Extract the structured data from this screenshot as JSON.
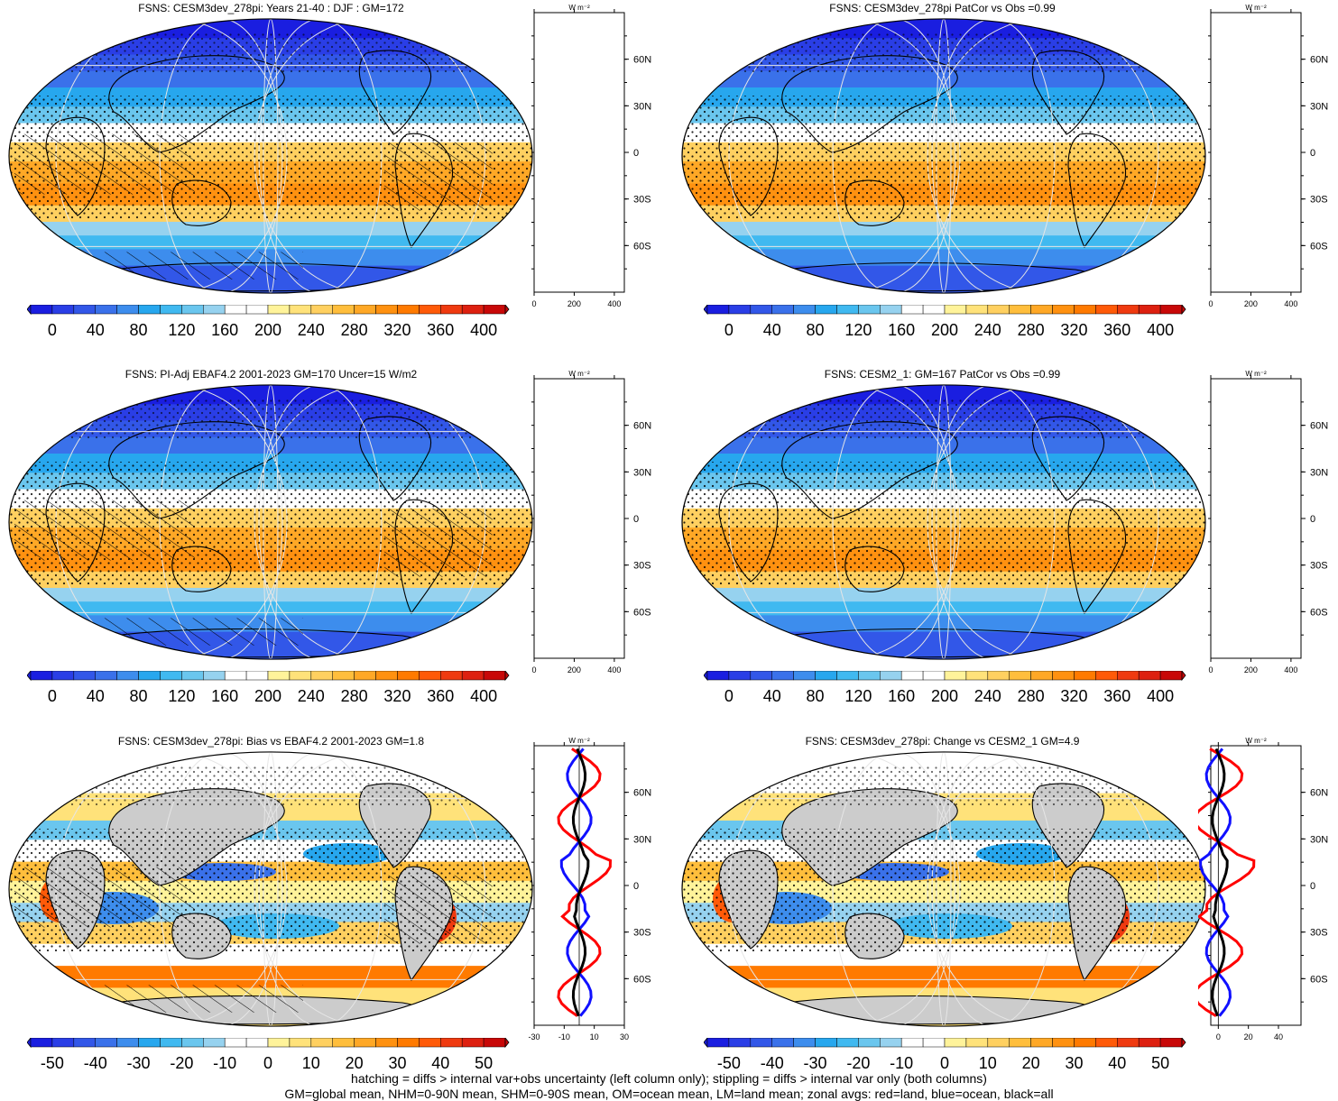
{
  "panels": [
    {
      "title": "FSNS: CESM3dev_278pi: Years 21-40 : DJF : GM=172",
      "kind": "abs",
      "hatch": true,
      "stipple": true
    },
    {
      "title": "FSNS: CESM3dev_278pi PatCor vs Obs =0.99",
      "kind": "abs",
      "hatch": false,
      "stipple": true
    },
    {
      "title": "FSNS: PI-Adj EBAF4.2 2001-2023 GM=170 Uncer=15 W/m2",
      "kind": "abs",
      "hatch": true,
      "stipple": true
    },
    {
      "title": "FSNS: CESM2_1: GM=167 PatCor vs Obs =0.99",
      "kind": "abs",
      "hatch": false,
      "stipple": true
    },
    {
      "title": "FSNS: CESM3dev_278pi: Bias vs EBAF4.2 2001-2023 GM=1.8",
      "kind": "diff",
      "hatch": true,
      "stipple": true
    },
    {
      "title": "FSNS: CESM3dev_278pi: Change vs CESM2_1 GM=4.9",
      "kind": "diff",
      "hatch": false,
      "stipple": true
    }
  ],
  "zonal": {
    "units": "W m⁻²",
    "lat_labels": [
      "60N",
      "30N",
      "0",
      "30S",
      "60S"
    ],
    "abs_xticks": [
      "0",
      "200",
      "400"
    ],
    "diff_left_xticks": [
      "-30",
      "-10",
      "10",
      "30"
    ],
    "diff_right_xticks": [
      "0",
      "20",
      "40"
    ]
  },
  "colorbar": {
    "abs_labels": [
      "0",
      "40",
      "80",
      "120",
      "160",
      "200",
      "240",
      "280",
      "320",
      "360",
      "400"
    ],
    "diff_labels": [
      "-50",
      "-40",
      "-30",
      "-20",
      "-10",
      "0",
      "10",
      "20",
      "30",
      "40",
      "50"
    ],
    "colors": [
      "#1a1ee0",
      "#2a3ee6",
      "#3257e8",
      "#3a71ea",
      "#3d8ded",
      "#27a7ee",
      "#40b9f0",
      "#6ac6ee",
      "#96d2ef",
      "#ffffff",
      "#ffffff",
      "#fff39a",
      "#ffe27a",
      "#ffd060",
      "#ffbe3c",
      "#ffa826",
      "#ff9110",
      "#ff7a00",
      "#ff5a08",
      "#ef3a10",
      "#dd2010",
      "#c80808"
    ],
    "line_colors": {
      "land": "#ff0000",
      "ocean": "#1010ff",
      "all": "#000000"
    }
  },
  "footer": {
    "line1": "hatching = diffs > internal var+obs uncertainty (left column only); stippling = diffs > internal var only (both columns)",
    "line2": "GM=global mean, NHM=0-90N mean, SHM=0-90S mean, OM=ocean mean, LM=land mean; zonal avgs: red=land, blue=ocean, black=all"
  }
}
